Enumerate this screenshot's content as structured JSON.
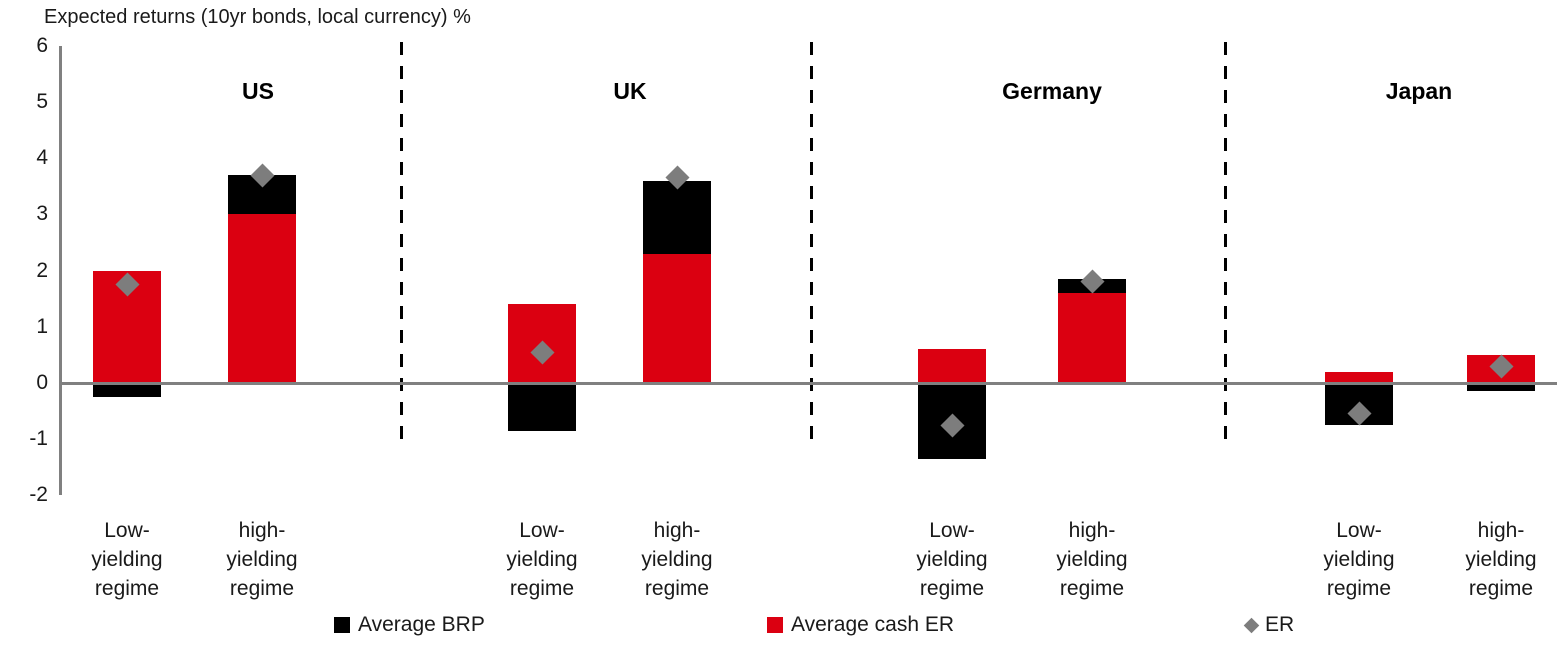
{
  "chart_data": {
    "type": "bar",
    "stacked": true,
    "title": "Expected returns (10yr bonds, local currency) %",
    "ylabel": "Expected returns (10yr bonds, local currency) %",
    "xlabel": "",
    "ylim": [
      -2,
      6
    ],
    "yticks": [
      6,
      5,
      4,
      3,
      2,
      1,
      0,
      -1,
      -2
    ],
    "grid": false,
    "legend_position": "bottom",
    "categories_per_group": [
      "Low-yielding regime",
      "high-yielding regime"
    ],
    "category_display_lines": [
      [
        "Low-",
        "yielding",
        "regime"
      ],
      [
        "high-",
        "yielding",
        "regime"
      ]
    ],
    "groups": [
      {
        "name": "US",
        "series": {
          "avg_brp": [
            -0.25,
            0.7
          ],
          "avg_cash_er": [
            2.0,
            3.0
          ],
          "er": [
            1.75,
            3.7
          ]
        }
      },
      {
        "name": "UK",
        "series": {
          "avg_brp": [
            -0.85,
            1.3
          ],
          "avg_cash_er": [
            1.4,
            2.3
          ],
          "er": [
            0.55,
            3.65
          ]
        }
      },
      {
        "name": "Germany",
        "series": {
          "avg_brp": [
            -1.35,
            0.25
          ],
          "avg_cash_er": [
            0.6,
            1.6
          ],
          "er": [
            -0.75,
            1.8
          ]
        }
      },
      {
        "name": "Japan",
        "series": {
          "avg_brp": [
            -0.75,
            -0.15
          ],
          "avg_cash_er": [
            0.2,
            0.5
          ],
          "er": [
            -0.55,
            0.3
          ]
        }
      }
    ],
    "legend": [
      {
        "label": "Average BRP",
        "marker": "square",
        "color": "#000000"
      },
      {
        "label": "Average cash ER",
        "marker": "square",
        "color": "#db0011"
      },
      {
        "label": "ER",
        "marker": "diamond",
        "color": "#7d7d7d"
      }
    ],
    "colors": {
      "avg_brp": "#000000",
      "avg_cash_er": "#db0011",
      "er": "#7d7d7d",
      "axis": "#808080"
    }
  }
}
